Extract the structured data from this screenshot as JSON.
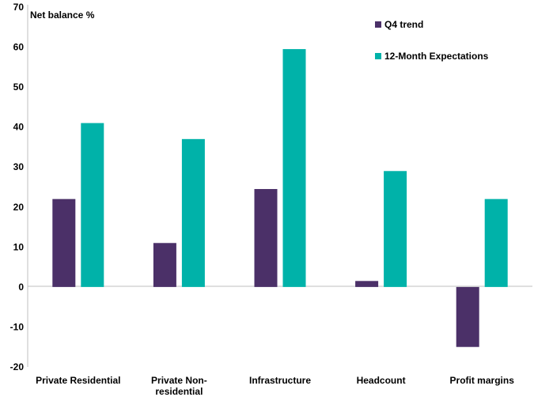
{
  "chart_data": {
    "type": "bar",
    "title": "",
    "ylabel": "Net balance %",
    "xlabel": "",
    "ylim": [
      -20,
      70
    ],
    "yticks": [
      70,
      60,
      50,
      40,
      30,
      20,
      10,
      0,
      -10,
      -20
    ],
    "categories": [
      "Private Residential",
      "Private Non-residential",
      "Infrastructure",
      "Headcount",
      "Profit margins"
    ],
    "category_lines": [
      [
        "Private Residential"
      ],
      [
        "Private Non-",
        "residential"
      ],
      [
        "Infrastructure"
      ],
      [
        "Headcount"
      ],
      [
        "Profit margins"
      ]
    ],
    "series": [
      {
        "name": "Q4 trend",
        "color": "#4b3068",
        "values": [
          22,
          11,
          24.5,
          1.5,
          -15
        ]
      },
      {
        "name": "12-Month Expectations",
        "color": "#00b2a9",
        "values": [
          41,
          37,
          59.5,
          29,
          22
        ]
      }
    ],
    "legend_position": "top-right",
    "grid": false
  }
}
